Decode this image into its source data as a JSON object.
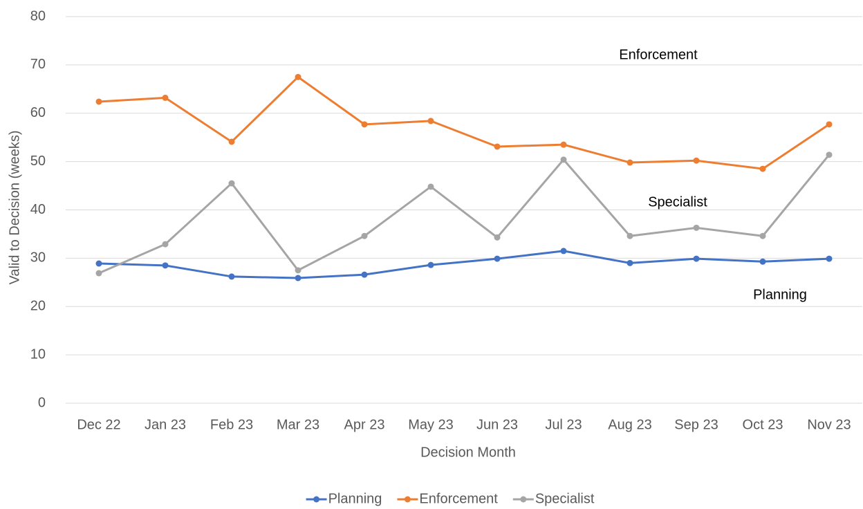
{
  "chart_data": {
    "type": "line",
    "x_label": "Decision Month",
    "y_label": "Valid to Decision (weeks)",
    "categories": [
      "Dec 22",
      "Jan 23",
      "Feb 23",
      "Mar 23",
      "Apr 23",
      "May 23",
      "Jun 23",
      "Jul 23",
      "Aug 23",
      "Sep 23",
      "Oct 23",
      "Nov 23"
    ],
    "series": [
      {
        "name": "Planning",
        "color": "#4472c4",
        "values": [
          28.9,
          28.5,
          26.2,
          25.9,
          26.6,
          28.6,
          29.9,
          31.5,
          29.0,
          29.9,
          29.3,
          29.9
        ]
      },
      {
        "name": "Enforcement",
        "color": "#ed7d31",
        "values": [
          62.4,
          63.2,
          54.1,
          67.5,
          57.7,
          58.4,
          53.1,
          53.5,
          49.8,
          50.2,
          48.5,
          57.7
        ]
      },
      {
        "name": "Specialist",
        "color": "#a5a5a5",
        "values": [
          26.9,
          32.9,
          45.5,
          27.5,
          34.6,
          44.8,
          34.3,
          50.4,
          34.6,
          36.3,
          34.6,
          51.4
        ]
      }
    ],
    "annotations": [
      "Enforcement",
      "Specialist",
      "Planning"
    ],
    "ylim": [
      0,
      80
    ],
    "yticks": [
      0,
      10,
      20,
      30,
      40,
      50,
      60,
      70,
      80
    ],
    "grid": true,
    "legend": "bottom"
  }
}
